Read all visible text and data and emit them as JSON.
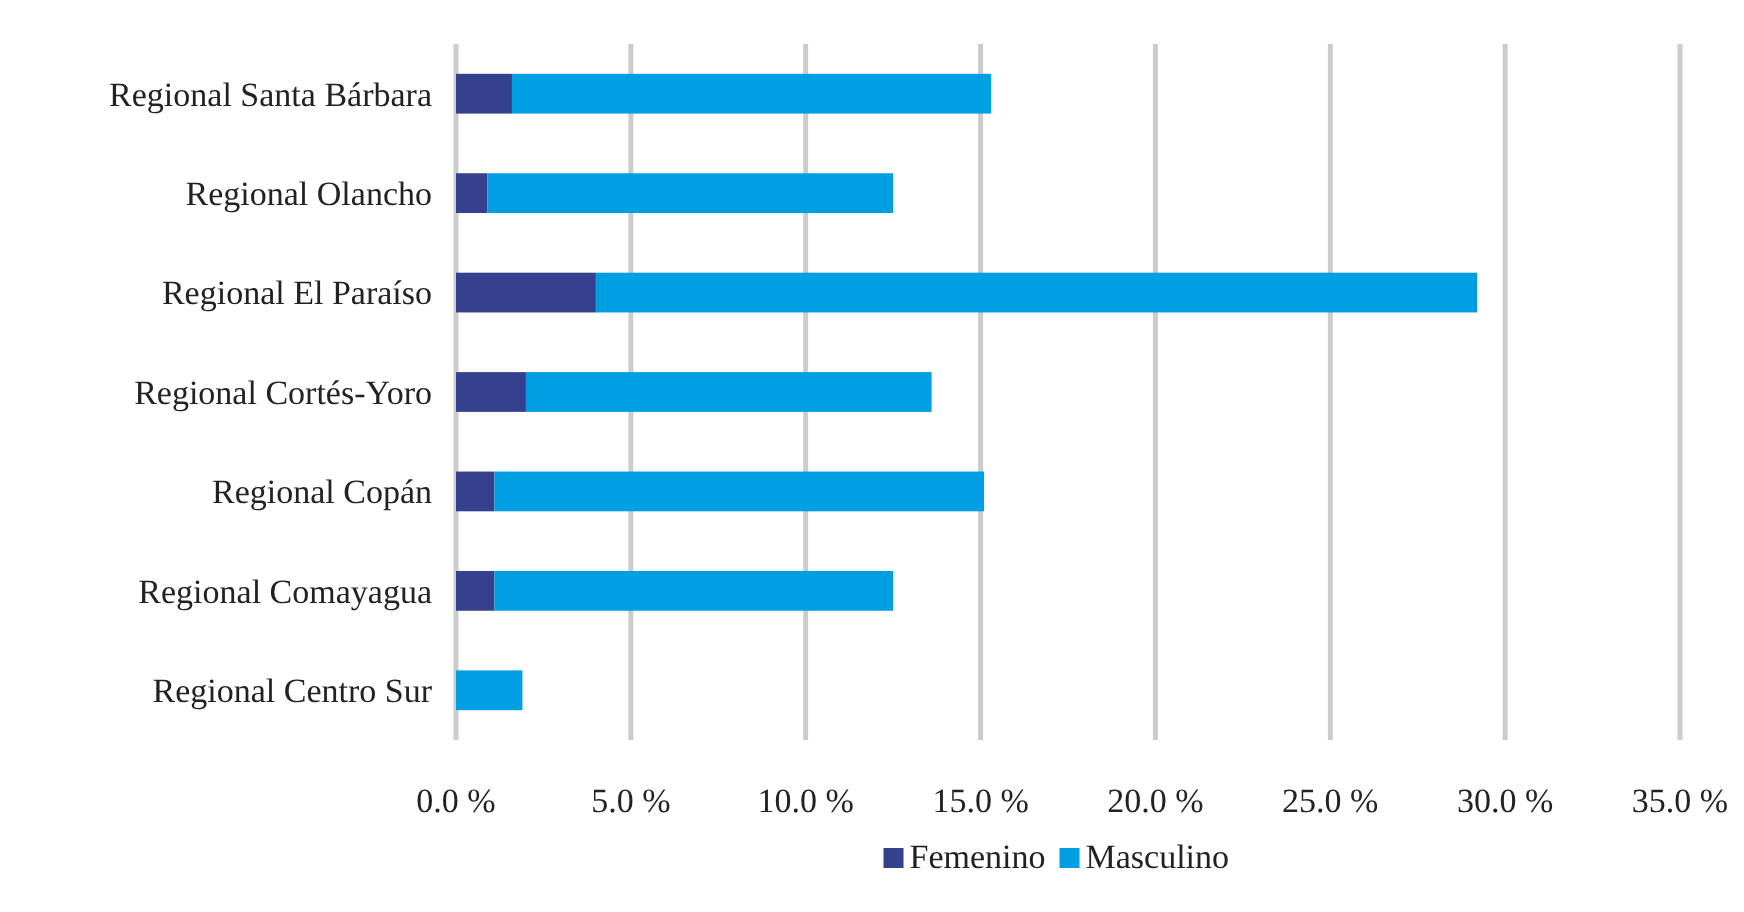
{
  "chart_data": {
    "type": "bar",
    "orientation": "horizontal",
    "stacked": true,
    "categories": [
      "Regional Santa Bárbara",
      "Regional Olancho",
      "Regional El Paraíso",
      "Regional Cortés-Yoro",
      "Regional Copán",
      "Regional Comayagua",
      "Regional Centro Sur"
    ],
    "series": [
      {
        "name": "Femenino",
        "color": "#35408e",
        "values": [
          1.6,
          0.9,
          4.0,
          2.0,
          1.1,
          1.1,
          0
        ]
      },
      {
        "name": "Masculino",
        "color": "#009fe3",
        "values": [
          13.7,
          11.6,
          25.2,
          11.6,
          14.0,
          11.4,
          1.9
        ]
      }
    ],
    "xlim": [
      0,
      35
    ],
    "xticks": [
      {
        "value": 0,
        "label": "0.0 %"
      },
      {
        "value": 5,
        "label": "5.0 %"
      },
      {
        "value": 10,
        "label": "10.0 %"
      },
      {
        "value": 15,
        "label": "15.0 %"
      },
      {
        "value": 20,
        "label": "20.0 %"
      },
      {
        "value": 25,
        "label": "25.0 %"
      },
      {
        "value": 30,
        "label": "30.0 %"
      },
      {
        "value": 35,
        "label": "35.0 %"
      }
    ],
    "grid": "x",
    "legend": "bottom"
  }
}
